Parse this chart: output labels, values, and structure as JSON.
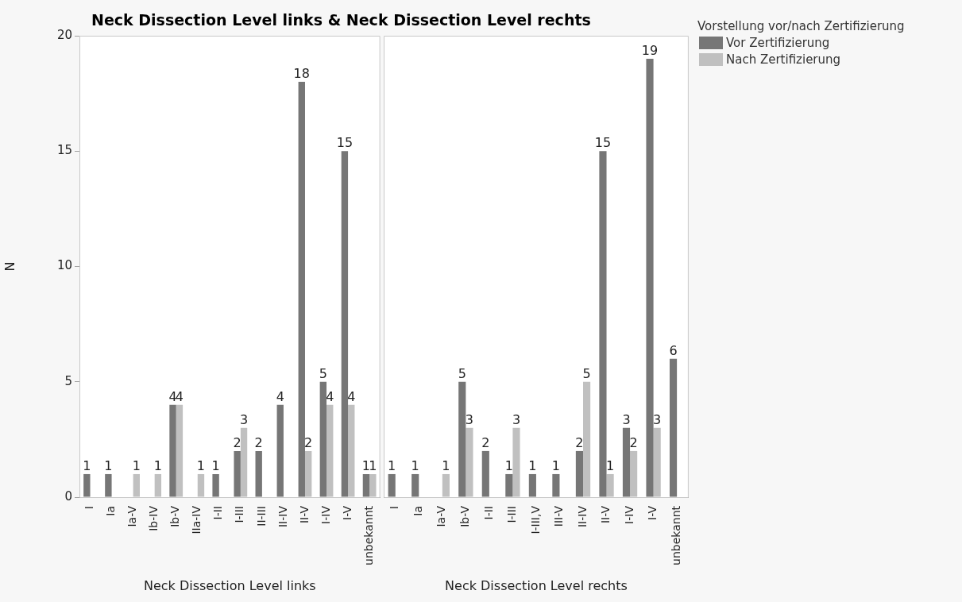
{
  "chart_data": [
    {
      "type": "bar",
      "title": "Neck Dissection Level links & Neck Dissection Level rechts",
      "xlabel": "Neck Dissection Level links",
      "ylabel": "N",
      "categories": [
        "I",
        "Ia",
        "Ia-V",
        "Ib-IV",
        "Ib-V",
        "IIa-IV",
        "I-II",
        "I-III",
        "II-III",
        "II-IV",
        "II-V",
        "I-IV",
        "I-V",
        "unbekannt"
      ],
      "series": [
        {
          "color": "#767676",
          "values": [
            1,
            1,
            null,
            null,
            4,
            null,
            1,
            2,
            2,
            4,
            18,
            5,
            15,
            1
          ]
        },
        {
          "color": "#c0c0c0",
          "values": [
            null,
            null,
            1,
            1,
            4,
            1,
            null,
            3,
            null,
            null,
            2,
            4,
            4,
            1
          ]
        }
      ],
      "ylim": [
        0,
        20
      ],
      "yticks": [
        0,
        5,
        10,
        15,
        20
      ],
      "grid": false,
      "data_labels": true,
      "legend": false
    },
    {
      "type": "bar",
      "xlabel": "Neck Dissection Level rechts",
      "legend_title": "Vorstellung vor/nach Zertifizierung",
      "categories": [
        "I",
        "Ia",
        "Ia-V",
        "Ib-V",
        "I-II",
        "I-III",
        "I-III,V",
        "III-V",
        "II-IV",
        "II-V",
        "I-IV",
        "I-V",
        "unbekannt"
      ],
      "series": [
        {
          "name": "Vor Zertifizierung",
          "color": "#767676",
          "values": [
            1,
            1,
            null,
            5,
            2,
            1,
            1,
            1,
            2,
            15,
            3,
            19,
            6
          ]
        },
        {
          "name": "Nach Zertifizierung",
          "color": "#c0c0c0",
          "values": [
            null,
            null,
            1,
            3,
            null,
            3,
            null,
            null,
            5,
            1,
            2,
            3,
            null
          ]
        }
      ],
      "ylim": [
        0,
        20
      ],
      "yticks": [
        0,
        5,
        10,
        15,
        20
      ],
      "grid": false,
      "data_labels": true,
      "legend": "right",
      "tick_labels": "x"
    }
  ]
}
